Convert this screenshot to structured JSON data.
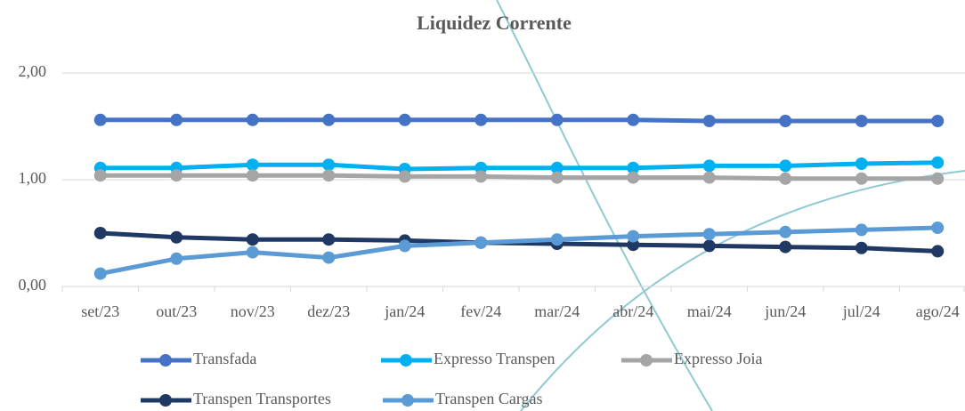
{
  "chart_data": {
    "type": "line",
    "title": "Liquidez Corrente",
    "categories": [
      "set/23",
      "out/23",
      "nov/23",
      "dez/23",
      "jan/24",
      "fev/24",
      "mar/24",
      "abr/24",
      "mai/24",
      "jun/24",
      "jul/24",
      "ago/24"
    ],
    "series": [
      {
        "name": "Transfada",
        "color": "#4472c4",
        "values": [
          1.56,
          1.56,
          1.56,
          1.56,
          1.56,
          1.56,
          1.56,
          1.56,
          1.55,
          1.55,
          1.55,
          1.55
        ]
      },
      {
        "name": "Expresso Transpen",
        "color": "#00b0f0",
        "values": [
          1.11,
          1.11,
          1.14,
          1.14,
          1.1,
          1.11,
          1.11,
          1.11,
          1.13,
          1.13,
          1.15,
          1.16
        ]
      },
      {
        "name": "Expresso Joia",
        "color": "#a5a5a5",
        "values": [
          1.04,
          1.04,
          1.04,
          1.04,
          1.03,
          1.03,
          1.02,
          1.02,
          1.02,
          1.01,
          1.01,
          1.01
        ]
      },
      {
        "name": "Transpen Transportes",
        "color": "#203864",
        "values": [
          0.5,
          0.46,
          0.44,
          0.44,
          0.43,
          0.41,
          0.4,
          0.39,
          0.38,
          0.37,
          0.36,
          0.33
        ]
      },
      {
        "name": "Transpen Cargas",
        "color": "#5b9bd5",
        "values": [
          0.12,
          0.26,
          0.32,
          0.27,
          0.38,
          0.41,
          0.44,
          0.47,
          0.49,
          0.51,
          0.53,
          0.55
        ]
      }
    ],
    "ylim": [
      0,
      2
    ],
    "yticks": [
      {
        "value": 0,
        "label": "0,00"
      },
      {
        "value": 1,
        "label": "1,00"
      },
      {
        "value": 2,
        "label": "2,00"
      }
    ],
    "grid": true
  }
}
